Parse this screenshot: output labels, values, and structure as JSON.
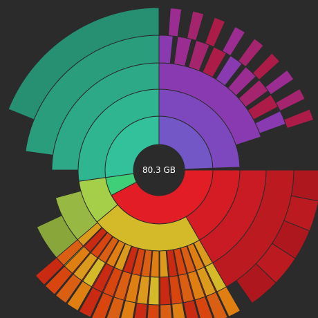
{
  "center": {
    "label": "80.3 GB"
  },
  "colors": {
    "background": "#2b2b2b",
    "center_hole": "#2b2b2b",
    "segment_stroke": "#2b2b2b",
    "red": [
      "#e31d25",
      "#d51c24",
      "#c81b23",
      "#bb1a21",
      "#ae171e"
    ],
    "teal": [
      "#33c19b",
      "#30b591",
      "#2da987",
      "#2a9d7d",
      "#278f72"
    ],
    "purple": [
      "#7357c7",
      "#7d47bd",
      "#8a3ab0",
      "#9b2c92",
      "#a5246e",
      "#ad1c49"
    ],
    "green": [
      "#3fcf79",
      "#a5cf49",
      "#97b842",
      "#89a63b"
    ],
    "orange": [
      "#d4b929",
      "#dc9a1d",
      "#df7f12",
      "#db5f12",
      "#d9450f",
      "#cb2a12"
    ]
  },
  "chart_data": {
    "type": "sunburst",
    "total": "80.3 GB",
    "rings": 5,
    "segment_groups": [
      {
        "name": "red",
        "visible_from_ring": 1
      },
      {
        "name": "teal",
        "visible_from_ring": 1
      },
      {
        "name": "purple",
        "visible_from_ring": 1
      },
      {
        "name": "green",
        "visible_from_ring": 1
      },
      {
        "name": "orange",
        "visible_from_ring": 2
      }
    ]
  }
}
